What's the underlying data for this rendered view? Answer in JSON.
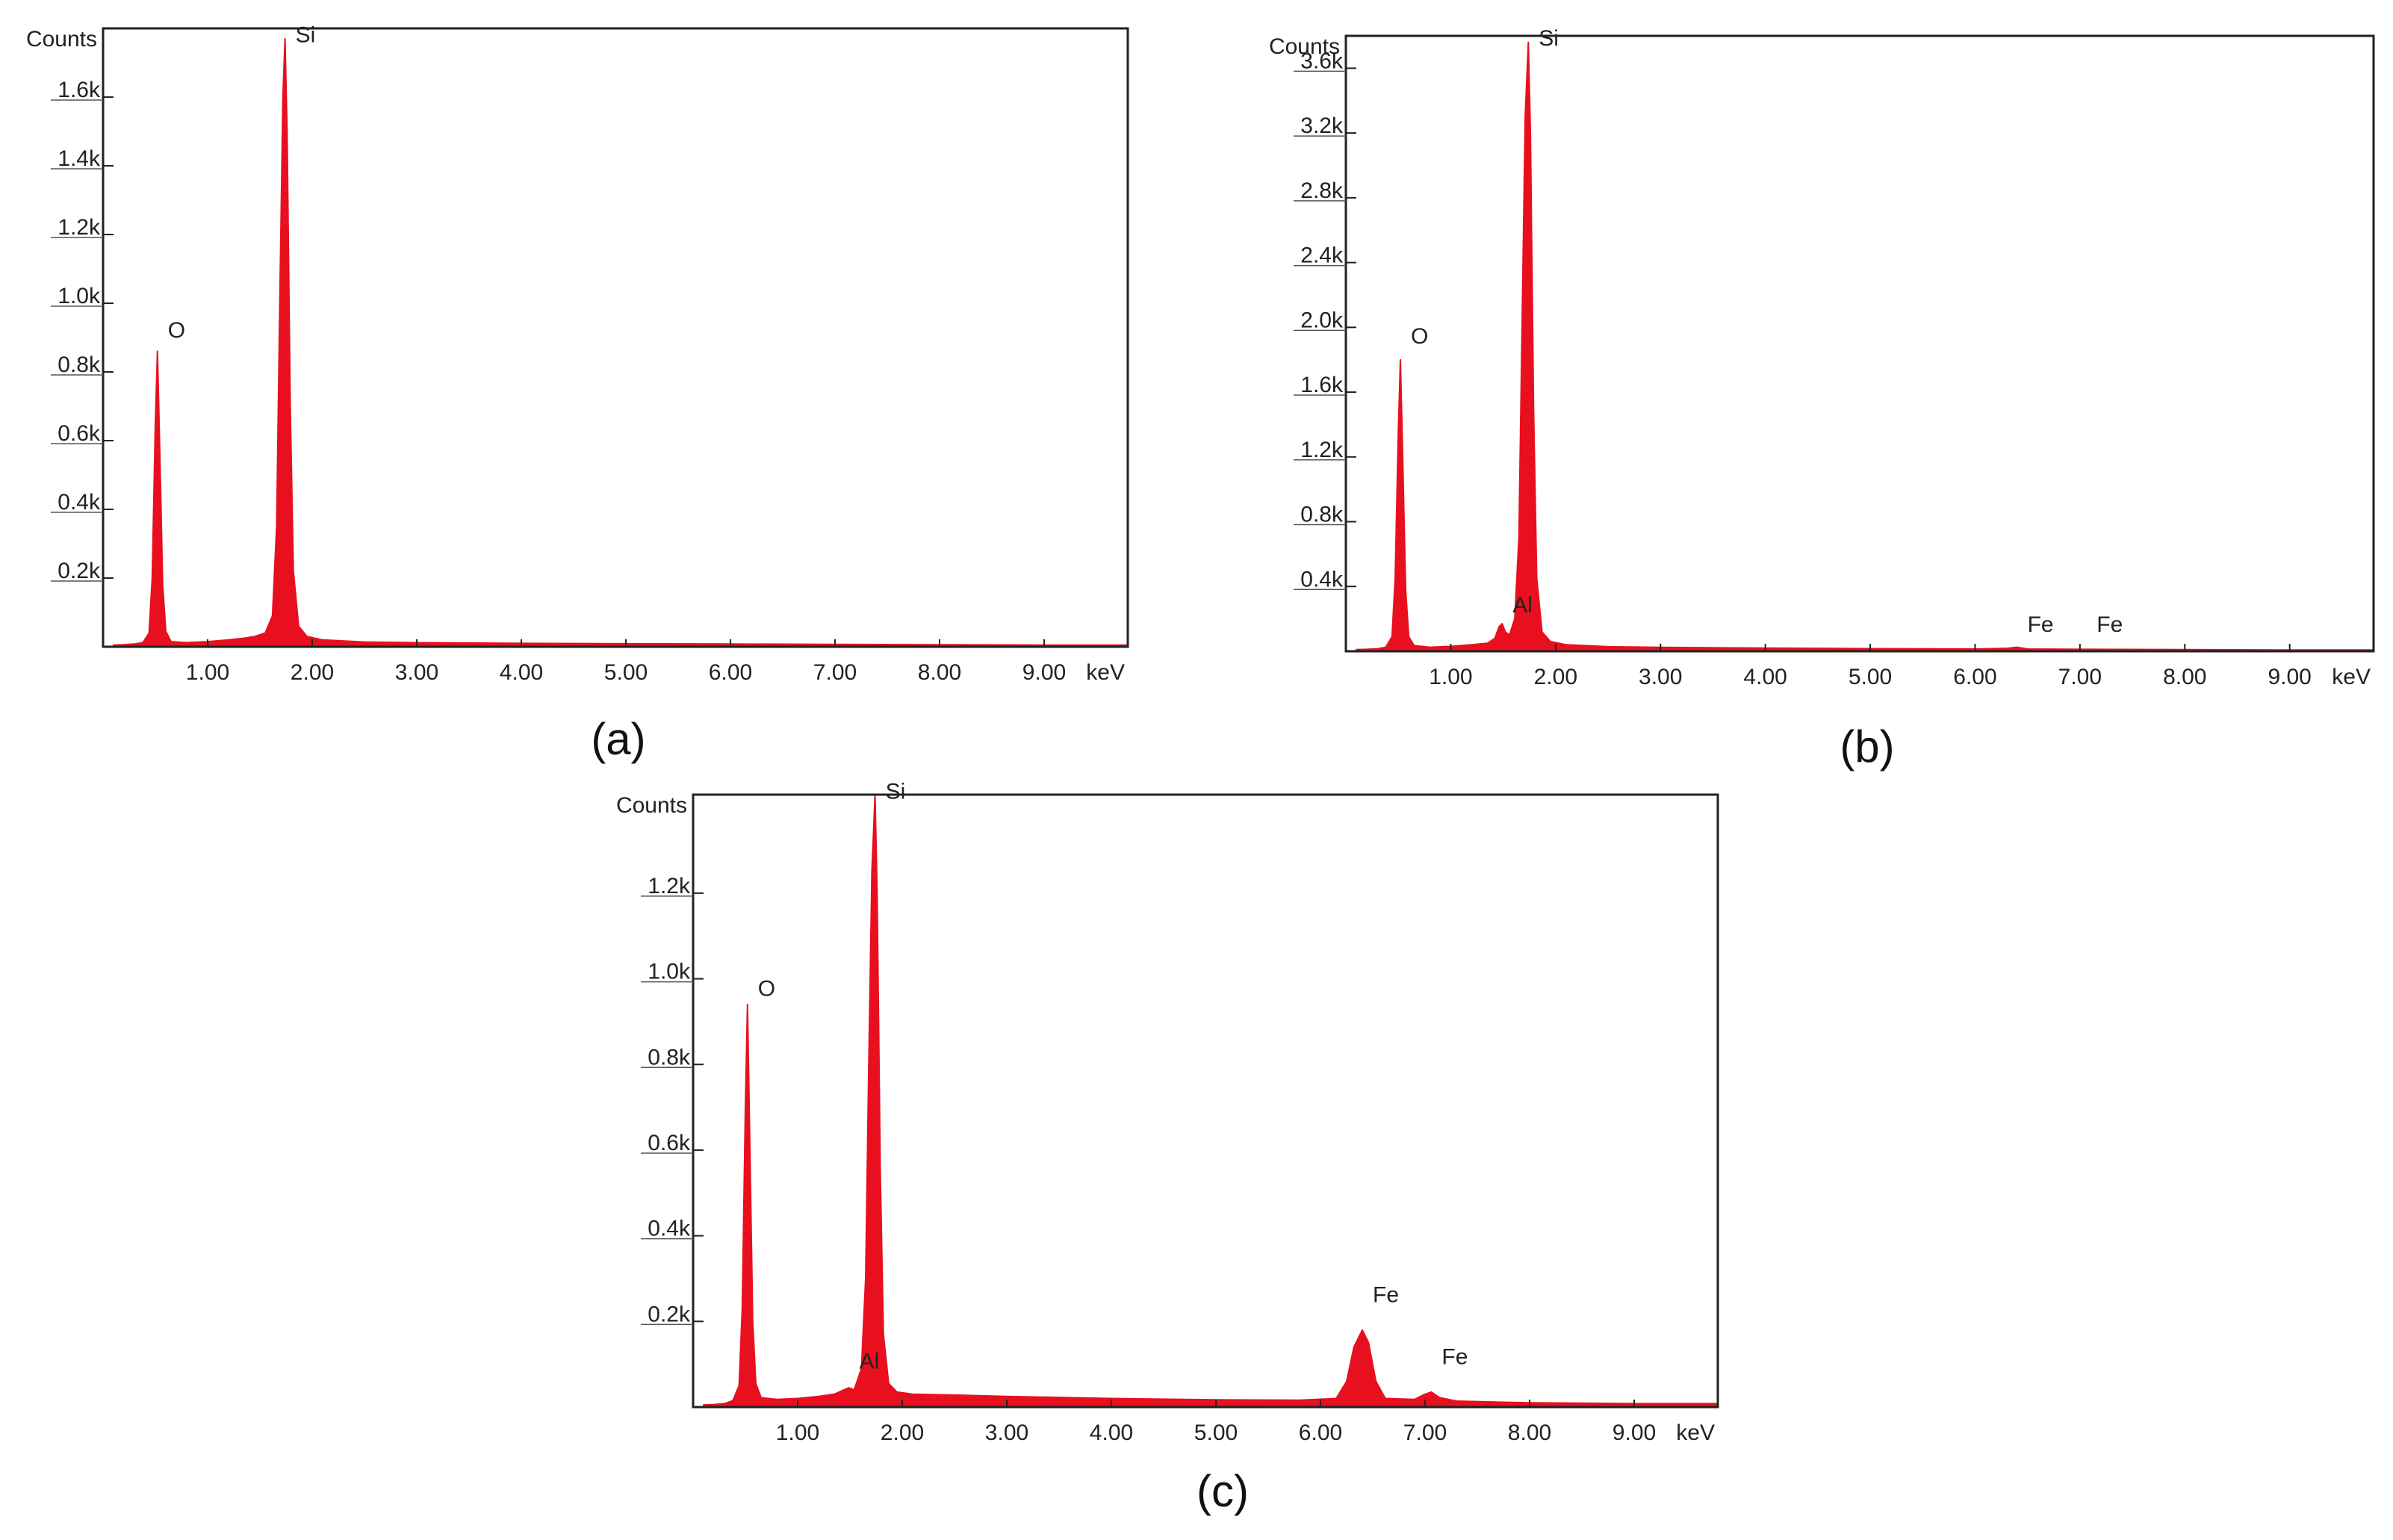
{
  "chart_data": [
    {
      "panel": "(a)",
      "type": "area",
      "ylabel": "Counts",
      "xunit": "keV",
      "xlim": [
        0,
        9.8
      ],
      "ylim": [
        0,
        1800
      ],
      "xticks": [
        1,
        2,
        3,
        4,
        5,
        6,
        7,
        8,
        9
      ],
      "xtick_labels": [
        "1.00",
        "2.00",
        "3.00",
        "4.00",
        "5.00",
        "6.00",
        "7.00",
        "8.00",
        "9.00"
      ],
      "yticks": [
        200,
        400,
        600,
        800,
        1000,
        1200,
        1400,
        1600
      ],
      "ytick_labels": [
        "0.2k",
        "0.4k",
        "0.6k",
        "0.8k",
        "1.0k",
        "1.2k",
        "1.4k",
        "1.6k"
      ],
      "color": "#e8101e",
      "peaks": [
        {
          "label": "O",
          "x": 0.52,
          "y": 860,
          "label_y": 900
        },
        {
          "label": "Si",
          "x": 1.74,
          "y": 1770,
          "label_y": 1760
        }
      ],
      "spectrum": [
        {
          "x": 0.1,
          "y": 5
        },
        {
          "x": 0.2,
          "y": 6
        },
        {
          "x": 0.3,
          "y": 8
        },
        {
          "x": 0.38,
          "y": 12
        },
        {
          "x": 0.44,
          "y": 40
        },
        {
          "x": 0.47,
          "y": 200
        },
        {
          "x": 0.5,
          "y": 650
        },
        {
          "x": 0.52,
          "y": 860
        },
        {
          "x": 0.54,
          "y": 600
        },
        {
          "x": 0.57,
          "y": 180
        },
        {
          "x": 0.6,
          "y": 45
        },
        {
          "x": 0.65,
          "y": 15
        },
        {
          "x": 0.8,
          "y": 12
        },
        {
          "x": 1.0,
          "y": 15
        },
        {
          "x": 1.2,
          "y": 20
        },
        {
          "x": 1.35,
          "y": 25
        },
        {
          "x": 1.45,
          "y": 30
        },
        {
          "x": 1.55,
          "y": 40
        },
        {
          "x": 1.62,
          "y": 90
        },
        {
          "x": 1.66,
          "y": 350
        },
        {
          "x": 1.69,
          "y": 1000
        },
        {
          "x": 1.72,
          "y": 1600
        },
        {
          "x": 1.74,
          "y": 1770
        },
        {
          "x": 1.76,
          "y": 1500
        },
        {
          "x": 1.79,
          "y": 700
        },
        {
          "x": 1.82,
          "y": 220
        },
        {
          "x": 1.87,
          "y": 60
        },
        {
          "x": 1.95,
          "y": 30
        },
        {
          "x": 2.1,
          "y": 20
        },
        {
          "x": 2.5,
          "y": 14
        },
        {
          "x": 3.0,
          "y": 12
        },
        {
          "x": 4.0,
          "y": 10
        },
        {
          "x": 5.0,
          "y": 9
        },
        {
          "x": 6.0,
          "y": 8
        },
        {
          "x": 7.0,
          "y": 7
        },
        {
          "x": 8.0,
          "y": 6
        },
        {
          "x": 9.0,
          "y": 5
        },
        {
          "x": 9.8,
          "y": 5
        }
      ]
    },
    {
      "panel": "(b)",
      "type": "area",
      "ylabel": "Counts",
      "xunit": "keV",
      "xlim": [
        0,
        9.8
      ],
      "ylim": [
        0,
        3800
      ],
      "xticks": [
        1,
        2,
        3,
        4,
        5,
        6,
        7,
        8,
        9
      ],
      "xtick_labels": [
        "1.00",
        "2.00",
        "3.00",
        "4.00",
        "5.00",
        "6.00",
        "7.00",
        "8.00",
        "9.00"
      ],
      "yticks": [
        400,
        800,
        1200,
        1600,
        2000,
        2400,
        2800,
        3200,
        3600
      ],
      "ytick_labels": [
        "0.4k",
        "0.8k",
        "1.2k",
        "1.6k",
        "2.0k",
        "2.4k",
        "2.8k",
        "3.2k",
        "3.6k"
      ],
      "color": "#e8101e",
      "peaks": [
        {
          "label": "O",
          "x": 0.52,
          "y": 1800,
          "label_y": 1900
        },
        {
          "label": "Al",
          "x": 1.49,
          "y": 170,
          "label_y": 240
        },
        {
          "label": "Si",
          "x": 1.74,
          "y": 3760,
          "label_y": 3740
        },
        {
          "label": "Fe",
          "x": 6.4,
          "y": 25,
          "label_y": 120
        },
        {
          "label": "Fe",
          "x": 7.06,
          "y": 12,
          "label_y": 120
        }
      ],
      "spectrum": [
        {
          "x": 0.1,
          "y": 10
        },
        {
          "x": 0.2,
          "y": 12
        },
        {
          "x": 0.3,
          "y": 15
        },
        {
          "x": 0.38,
          "y": 25
        },
        {
          "x": 0.44,
          "y": 90
        },
        {
          "x": 0.47,
          "y": 450
        },
        {
          "x": 0.5,
          "y": 1350
        },
        {
          "x": 0.52,
          "y": 1800
        },
        {
          "x": 0.54,
          "y": 1250
        },
        {
          "x": 0.57,
          "y": 380
        },
        {
          "x": 0.6,
          "y": 90
        },
        {
          "x": 0.65,
          "y": 35
        },
        {
          "x": 0.8,
          "y": 25
        },
        {
          "x": 1.0,
          "y": 30
        },
        {
          "x": 1.2,
          "y": 40
        },
        {
          "x": 1.35,
          "y": 50
        },
        {
          "x": 1.42,
          "y": 80
        },
        {
          "x": 1.46,
          "y": 150
        },
        {
          "x": 1.49,
          "y": 170
        },
        {
          "x": 1.52,
          "y": 120
        },
        {
          "x": 1.56,
          "y": 100
        },
        {
          "x": 1.61,
          "y": 200
        },
        {
          "x": 1.65,
          "y": 700
        },
        {
          "x": 1.68,
          "y": 2000
        },
        {
          "x": 1.71,
          "y": 3300
        },
        {
          "x": 1.74,
          "y": 3760
        },
        {
          "x": 1.76,
          "y": 3200
        },
        {
          "x": 1.79,
          "y": 1500
        },
        {
          "x": 1.82,
          "y": 450
        },
        {
          "x": 1.87,
          "y": 120
        },
        {
          "x": 1.95,
          "y": 60
        },
        {
          "x": 2.1,
          "y": 40
        },
        {
          "x": 2.5,
          "y": 28
        },
        {
          "x": 3.0,
          "y": 24
        },
        {
          "x": 4.0,
          "y": 20
        },
        {
          "x": 5.0,
          "y": 16
        },
        {
          "x": 6.0,
          "y": 14
        },
        {
          "x": 6.3,
          "y": 18
        },
        {
          "x": 6.4,
          "y": 25
        },
        {
          "x": 6.5,
          "y": 14
        },
        {
          "x": 7.0,
          "y": 12
        },
        {
          "x": 8.0,
          "y": 10
        },
        {
          "x": 9.0,
          "y": 8
        },
        {
          "x": 9.8,
          "y": 8
        }
      ]
    },
    {
      "panel": "(c)",
      "type": "area",
      "ylabel": "Counts",
      "xunit": "keV",
      "xlim": [
        0,
        9.8
      ],
      "ylim": [
        0,
        1430
      ],
      "xticks": [
        1,
        2,
        3,
        4,
        5,
        6,
        7,
        8,
        9
      ],
      "xtick_labels": [
        "1.00",
        "2.00",
        "3.00",
        "4.00",
        "5.00",
        "6.00",
        "7.00",
        "8.00",
        "9.00"
      ],
      "yticks": [
        200,
        400,
        600,
        800,
        1000,
        1200
      ],
      "ytick_labels": [
        "0.2k",
        "0.4k",
        "0.6k",
        "0.8k",
        "1.0k",
        "1.2k"
      ],
      "color": "#e8101e",
      "peaks": [
        {
          "label": "O",
          "x": 0.52,
          "y": 940,
          "label_y": 960
        },
        {
          "label": "Al",
          "x": 1.49,
          "y": 45,
          "label_y": 90
        },
        {
          "label": "Si",
          "x": 1.74,
          "y": 1430,
          "label_y": 1420
        },
        {
          "label": "Fe",
          "x": 6.4,
          "y": 180,
          "label_y": 245
        },
        {
          "label": "Fe",
          "x": 7.06,
          "y": 35,
          "label_y": 100
        }
      ],
      "spectrum": [
        {
          "x": 0.1,
          "y": 5
        },
        {
          "x": 0.2,
          "y": 6
        },
        {
          "x": 0.3,
          "y": 8
        },
        {
          "x": 0.38,
          "y": 15
        },
        {
          "x": 0.44,
          "y": 50
        },
        {
          "x": 0.47,
          "y": 230
        },
        {
          "x": 0.5,
          "y": 700
        },
        {
          "x": 0.52,
          "y": 940
        },
        {
          "x": 0.54,
          "y": 650
        },
        {
          "x": 0.57,
          "y": 200
        },
        {
          "x": 0.6,
          "y": 55
        },
        {
          "x": 0.65,
          "y": 22
        },
        {
          "x": 0.8,
          "y": 18
        },
        {
          "x": 1.0,
          "y": 20
        },
        {
          "x": 1.2,
          "y": 25
        },
        {
          "x": 1.35,
          "y": 30
        },
        {
          "x": 1.44,
          "y": 40
        },
        {
          "x": 1.49,
          "y": 45
        },
        {
          "x": 1.54,
          "y": 40
        },
        {
          "x": 1.61,
          "y": 90
        },
        {
          "x": 1.65,
          "y": 300
        },
        {
          "x": 1.68,
          "y": 800
        },
        {
          "x": 1.71,
          "y": 1250
        },
        {
          "x": 1.74,
          "y": 1430
        },
        {
          "x": 1.76,
          "y": 1200
        },
        {
          "x": 1.79,
          "y": 550
        },
        {
          "x": 1.82,
          "y": 170
        },
        {
          "x": 1.87,
          "y": 55
        },
        {
          "x": 1.95,
          "y": 35
        },
        {
          "x": 2.1,
          "y": 30
        },
        {
          "x": 2.5,
          "y": 28
        },
        {
          "x": 3.0,
          "y": 25
        },
        {
          "x": 4.0,
          "y": 20
        },
        {
          "x": 5.0,
          "y": 17
        },
        {
          "x": 5.8,
          "y": 16
        },
        {
          "x": 6.15,
          "y": 20
        },
        {
          "x": 6.25,
          "y": 60
        },
        {
          "x": 6.32,
          "y": 140
        },
        {
          "x": 6.4,
          "y": 180
        },
        {
          "x": 6.46,
          "y": 150
        },
        {
          "x": 6.53,
          "y": 60
        },
        {
          "x": 6.62,
          "y": 20
        },
        {
          "x": 6.9,
          "y": 18
        },
        {
          "x": 7.0,
          "y": 30
        },
        {
          "x": 7.06,
          "y": 35
        },
        {
          "x": 7.14,
          "y": 22
        },
        {
          "x": 7.3,
          "y": 14
        },
        {
          "x": 8.0,
          "y": 10
        },
        {
          "x": 9.0,
          "y": 8
        },
        {
          "x": 9.8,
          "y": 8
        }
      ]
    }
  ]
}
